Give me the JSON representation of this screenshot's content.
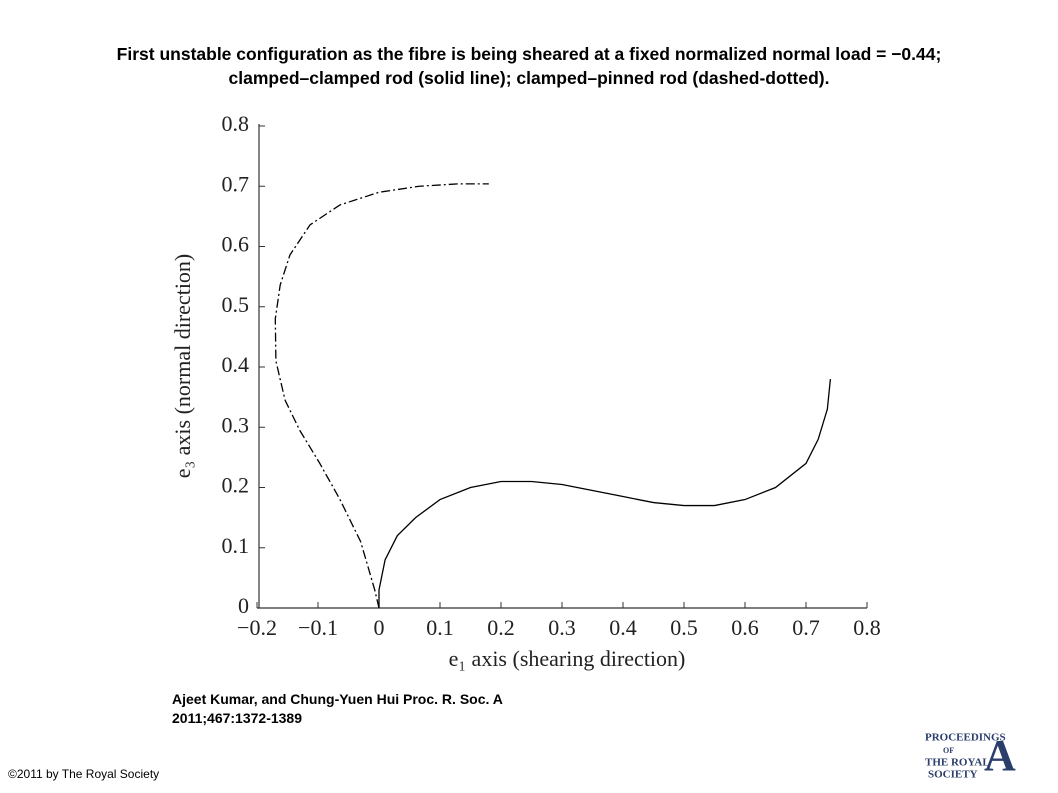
{
  "chart_data": {
    "type": "line",
    "title": "First unstable configuration as the fibre is being sheared at a fixed normalized normal load = −0.44; clamped–clamped rod (solid line); clamped–pinned rod (dashed-dotted).",
    "xlabel": "e₁ axis (shearing direction)",
    "ylabel": "e₃ axis (normal direction)",
    "xlim": [
      -0.2,
      0.8
    ],
    "ylim": [
      0,
      0.8
    ],
    "xticks": [
      {
        "value": -0.2,
        "label": "−0.2"
      },
      {
        "value": -0.1,
        "label": "−0.1"
      },
      0,
      0.1,
      0.2,
      0.3,
      0.4,
      0.5,
      0.6,
      0.7,
      0.8
    ],
    "yticks": [
      0,
      0.1,
      0.2,
      0.3,
      0.4,
      0.5,
      0.6,
      0.7,
      0.8
    ],
    "grid": false,
    "series": [
      {
        "color": "#000000",
        "line_style": "solid",
        "x": [
          0,
          0.0,
          0.01,
          0.03,
          0.06,
          0.1,
          0.15,
          0.2,
          0.25,
          0.3,
          0.35,
          0.4,
          0.45,
          0.5,
          0.55,
          0.6,
          0.65,
          0.7,
          0.72,
          0.735,
          0.74
        ],
        "values": [
          0,
          0.03,
          0.08,
          0.12,
          0.15,
          0.18,
          0.2,
          0.21,
          0.21,
          0.205,
          0.195,
          0.185,
          0.175,
          0.17,
          0.17,
          0.18,
          0.2,
          0.24,
          0.28,
          0.33,
          0.38
        ]
      },
      {
        "color": "#000000",
        "line_style": "dashdot",
        "x": [
          0,
          -0.007,
          -0.03,
          -0.064,
          -0.097,
          -0.13,
          -0.154,
          -0.169,
          -0.17,
          -0.162,
          -0.146,
          -0.113,
          -0.064,
          0.0,
          0.066,
          0.13,
          0.18
        ],
        "values": [
          0,
          0.03,
          0.11,
          0.18,
          0.24,
          0.295,
          0.345,
          0.41,
          0.48,
          0.536,
          0.586,
          0.636,
          0.669,
          0.69,
          0.7,
          0.704,
          0.704
        ]
      }
    ]
  },
  "citation": "Ajeet Kumar, and Chung-Yuen Hui Proc. R. Soc. A 2011;467:1372-1389",
  "copyright": "©2011 by The Royal Society",
  "logo": {
    "line1": "PROCEEDINGS",
    "line2": "OF",
    "line3": "THE ROYAL",
    "line4": "SOCIETY",
    "letter": "A"
  }
}
